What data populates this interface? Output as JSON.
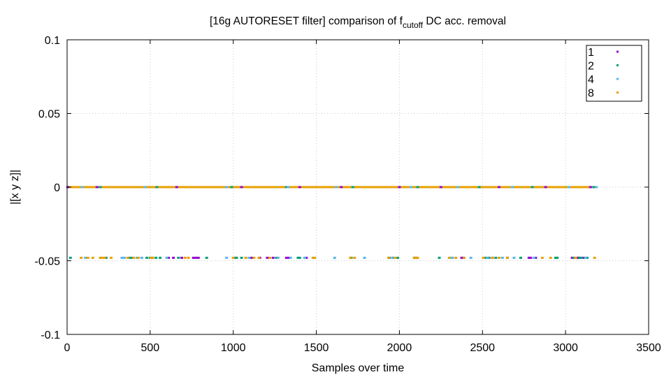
{
  "chart_data": {
    "type": "scatter",
    "title": {
      "prefix": "[16g AUTORESET filter] comparison of f",
      "subscript": "cutoff",
      "suffix": " DC acc. removal"
    },
    "xlabel": "Samples over time",
    "ylabel": "|[x y z]|",
    "xlim": [
      0,
      3500
    ],
    "ylim": [
      -0.1,
      0.1
    ],
    "x_ticks": [
      0,
      500,
      1000,
      1500,
      2000,
      2500,
      3000,
      3500
    ],
    "x_tick_labels": [
      "0",
      "500",
      "1000",
      "1500",
      "2000",
      "2500",
      "3000",
      "3500"
    ],
    "y_ticks": [
      0.1,
      0.05,
      0,
      -0.05,
      -0.1
    ],
    "y_tick_labels": [
      "0.1",
      "0.05",
      "0",
      "-0.05",
      "-0.1"
    ],
    "grid": true,
    "legend_position": "top-right",
    "series": [
      {
        "name": "1",
        "color": "#9400d3",
        "baseline": {
          "y": 0,
          "x_range": [
            0,
            3180
          ]
        },
        "points": [
          [
            610,
            -0.048
          ],
          [
            640,
            -0.048
          ],
          [
            690,
            -0.048
          ],
          [
            760,
            -0.048
          ],
          [
            775,
            -0.048
          ],
          [
            790,
            -0.048
          ],
          [
            1110,
            -0.048
          ],
          [
            1160,
            -0.048
          ],
          [
            1205,
            -0.048
          ],
          [
            1240,
            -0.048
          ],
          [
            1320,
            -0.048
          ],
          [
            1335,
            -0.048
          ],
          [
            1440,
            -0.048
          ],
          [
            1960,
            -0.048
          ],
          [
            2375,
            -0.048
          ],
          [
            2385,
            -0.048
          ],
          [
            2560,
            -0.048
          ],
          [
            2650,
            -0.048
          ],
          [
            2780,
            -0.048
          ],
          [
            2790,
            -0.048
          ],
          [
            2820,
            -0.048
          ],
          [
            3040,
            -0.048
          ],
          [
            3075,
            -0.048
          ],
          [
            3080,
            -0.048
          ],
          [
            3110,
            -0.048
          ],
          [
            4,
            0
          ],
          [
            180,
            0
          ],
          [
            660,
            0
          ],
          [
            1050,
            0
          ],
          [
            1400,
            0
          ],
          [
            1650,
            0
          ],
          [
            2000,
            0
          ],
          [
            2250,
            0
          ],
          [
            2600,
            0
          ],
          [
            2880,
            0
          ],
          [
            3150,
            0
          ]
        ]
      },
      {
        "name": "2",
        "color": "#009e73",
        "baseline": {
          "y": 0,
          "x_range": [
            0,
            3190
          ]
        },
        "points": [
          [
            20,
            -0.048
          ],
          [
            235,
            -0.048
          ],
          [
            375,
            -0.048
          ],
          [
            390,
            -0.048
          ],
          [
            480,
            -0.048
          ],
          [
            500,
            -0.048
          ],
          [
            515,
            -0.048
          ],
          [
            535,
            -0.048
          ],
          [
            560,
            -0.048
          ],
          [
            670,
            -0.048
          ],
          [
            840,
            -0.048
          ],
          [
            1010,
            -0.048
          ],
          [
            1020,
            -0.048
          ],
          [
            1050,
            -0.048
          ],
          [
            1260,
            -0.048
          ],
          [
            1390,
            -0.048
          ],
          [
            1400,
            -0.048
          ],
          [
            1710,
            -0.048
          ],
          [
            1940,
            -0.048
          ],
          [
            1990,
            -0.048
          ],
          [
            2090,
            -0.048
          ],
          [
            2100,
            -0.048
          ],
          [
            2240,
            -0.048
          ],
          [
            2520,
            -0.048
          ],
          [
            2540,
            -0.048
          ],
          [
            2580,
            -0.048
          ],
          [
            2730,
            -0.048
          ],
          [
            2940,
            -0.048
          ],
          [
            2950,
            -0.048
          ],
          [
            3050,
            -0.048
          ],
          [
            3085,
            -0.048
          ],
          [
            3095,
            -0.048
          ],
          [
            3130,
            -0.048
          ],
          [
            200,
            0
          ],
          [
            540,
            0
          ],
          [
            990,
            0
          ],
          [
            1320,
            0
          ],
          [
            1720,
            0
          ],
          [
            2110,
            0
          ],
          [
            2480,
            0
          ],
          [
            2800,
            0
          ],
          [
            3170,
            0
          ]
        ]
      },
      {
        "name": "4",
        "color": "#56b4e9",
        "baseline": {
          "y": 0,
          "x_range": [
            0,
            3190
          ]
        },
        "points": [
          [
            110,
            -0.048
          ],
          [
            330,
            -0.048
          ],
          [
            345,
            -0.048
          ],
          [
            420,
            -0.048
          ],
          [
            450,
            -0.048
          ],
          [
            600,
            -0.048
          ],
          [
            960,
            -0.048
          ],
          [
            1095,
            -0.048
          ],
          [
            1270,
            -0.048
          ],
          [
            1345,
            -0.048
          ],
          [
            1430,
            -0.048
          ],
          [
            1610,
            -0.048
          ],
          [
            1790,
            -0.048
          ],
          [
            1960,
            -0.048
          ],
          [
            2310,
            -0.048
          ],
          [
            2320,
            -0.048
          ],
          [
            2430,
            -0.048
          ],
          [
            2530,
            -0.048
          ],
          [
            2620,
            -0.048
          ],
          [
            2690,
            -0.048
          ],
          [
            2810,
            -0.048
          ],
          [
            3120,
            -0.048
          ],
          [
            90,
            0
          ],
          [
            470,
            0
          ],
          [
            960,
            0
          ],
          [
            1330,
            0
          ],
          [
            1620,
            0
          ],
          [
            2070,
            0
          ],
          [
            2350,
            0
          ],
          [
            2680,
            0
          ],
          [
            3020,
            0
          ],
          [
            3185,
            0
          ]
        ]
      },
      {
        "name": "8",
        "color": "#e69f00",
        "baseline": {
          "y": 0,
          "x_range": [
            0,
            3180
          ]
        },
        "points": [
          [
            85,
            -0.048
          ],
          [
            125,
            -0.048
          ],
          [
            155,
            -0.048
          ],
          [
            200,
            -0.048
          ],
          [
            210,
            -0.048
          ],
          [
            225,
            -0.048
          ],
          [
            265,
            -0.048
          ],
          [
            365,
            -0.048
          ],
          [
            400,
            -0.048
          ],
          [
            430,
            -0.048
          ],
          [
            505,
            -0.048
          ],
          [
            515,
            -0.048
          ],
          [
            710,
            -0.048
          ],
          [
            730,
            -0.048
          ],
          [
            1000,
            -0.048
          ],
          [
            1075,
            -0.048
          ],
          [
            1125,
            -0.048
          ],
          [
            1155,
            -0.048
          ],
          [
            1220,
            -0.048
          ],
          [
            1480,
            -0.048
          ],
          [
            1490,
            -0.048
          ],
          [
            1705,
            -0.048
          ],
          [
            1730,
            -0.048
          ],
          [
            1935,
            -0.048
          ],
          [
            1975,
            -0.048
          ],
          [
            2090,
            -0.048
          ],
          [
            2100,
            -0.048
          ],
          [
            2110,
            -0.048
          ],
          [
            2300,
            -0.048
          ],
          [
            2340,
            -0.048
          ],
          [
            2390,
            -0.048
          ],
          [
            2505,
            -0.048
          ],
          [
            2560,
            -0.048
          ],
          [
            2600,
            -0.048
          ],
          [
            2650,
            -0.048
          ],
          [
            2860,
            -0.048
          ],
          [
            2910,
            -0.048
          ],
          [
            3060,
            -0.048
          ],
          [
            3175,
            -0.048
          ]
        ]
      }
    ]
  }
}
